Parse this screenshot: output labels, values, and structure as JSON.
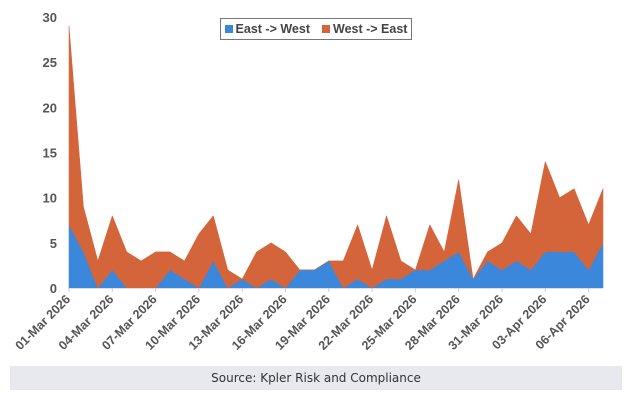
{
  "chart_data": {
    "type": "area",
    "stacked": true,
    "title": "",
    "xlabel": "",
    "ylabel": "",
    "ylim": [
      0,
      30
    ],
    "yticks": [
      0,
      5,
      10,
      15,
      20,
      25,
      30
    ],
    "grid": false,
    "legend_position": "top-center",
    "x": [
      "01-Mar 2026",
      "02-Mar 2026",
      "03-Mar 2026",
      "04-Mar 2026",
      "05-Mar 2026",
      "06-Mar 2026",
      "07-Mar 2026",
      "08-Mar 2026",
      "09-Mar 2026",
      "10-Mar 2026",
      "11-Mar 2026",
      "12-Mar 2026",
      "13-Mar 2026",
      "14-Mar 2026",
      "15-Mar 2026",
      "16-Mar 2026",
      "17-Mar 2026",
      "18-Mar 2026",
      "19-Mar 2026",
      "20-Mar 2026",
      "21-Mar 2026",
      "22-Mar 2026",
      "23-Mar 2026",
      "24-Mar 2026",
      "25-Mar 2026",
      "26-Mar 2026",
      "27-Mar 2026",
      "28-Mar 2026",
      "29-Mar 2026",
      "30-Mar 2026",
      "31-Mar 2026",
      "01-Apr 2026",
      "02-Apr 2026",
      "03-Apr 2026",
      "04-Apr 2026",
      "05-Apr 2026",
      "06-Apr 2026",
      "07-Apr 2026"
    ],
    "xtick_labels": [
      "01-Mar 2026",
      "04-Mar 2026",
      "07-Mar 2026",
      "10-Mar 2026",
      "13-Mar 2026",
      "16-Mar 2026",
      "19-Mar 2026",
      "22-Mar 2026",
      "25-Mar 2026",
      "28-Mar 2026",
      "31-Mar 2026",
      "03-Apr 2026",
      "06-Apr 2026"
    ],
    "series": [
      {
        "name": "East -> West",
        "color": "#3a87db",
        "values": [
          7,
          4,
          0,
          2,
          0,
          0,
          0,
          2,
          1,
          0,
          3,
          0,
          1,
          0,
          1,
          0,
          2,
          2,
          3,
          0,
          1,
          0,
          1,
          1,
          2,
          2,
          3,
          4,
          1,
          3,
          2,
          3,
          2,
          4,
          4,
          4,
          2,
          5
        ]
      },
      {
        "name": "West -> East",
        "color": "#d4643a",
        "values": [
          22,
          5,
          3,
          6,
          4,
          3,
          4,
          2,
          2,
          6,
          5,
          2,
          0,
          4,
          4,
          4,
          0,
          0,
          0,
          3,
          6,
          2,
          7,
          2,
          0,
          5,
          1,
          8,
          0,
          1,
          3,
          5,
          4,
          10,
          6,
          7,
          5,
          6
        ]
      }
    ]
  },
  "source": "Source: Kpler Risk and Compliance"
}
